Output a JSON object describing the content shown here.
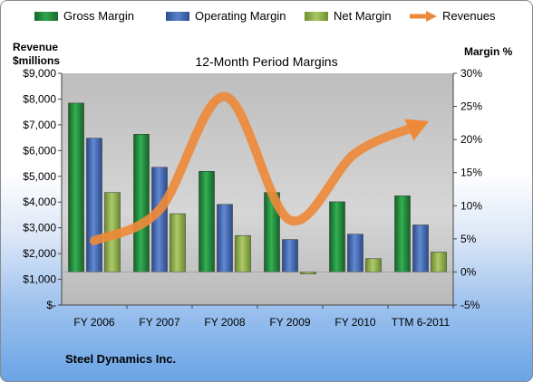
{
  "legend": {
    "gross": "Gross Margin",
    "operating": "Operating Margin",
    "net": "Net Margin",
    "revenues": "Revenues"
  },
  "left_axis_title_line1": "Revenue",
  "left_axis_title_line2": "$millions",
  "right_axis_title": "Margin %",
  "company": "Steel Dynamics Inc.",
  "colors": {
    "gross": "#1f8a3c",
    "operating": "#3d63ad",
    "net": "#8faf4a",
    "revenues": "#ed8a3a",
    "plot_bg": "#cfcfcf"
  },
  "chart_data": {
    "type": "bar",
    "title": "12-Month Period Margins",
    "categories": [
      "FY 2006",
      "FY 2007",
      "FY 2008",
      "FY 2009",
      "FY 2010",
      "TTM 6-2011"
    ],
    "left_axis": {
      "label": "Revenue $millions",
      "ylim": [
        0,
        9000
      ],
      "ticks": [
        "$-",
        "$1,000",
        "$2,000",
        "$3,000",
        "$4,000",
        "$5,000",
        "$6,000",
        "$7,000",
        "$8,000",
        "$9,000"
      ]
    },
    "right_axis": {
      "label": "Margin %",
      "ylim": [
        -5,
        30
      ],
      "ticks": [
        "-5%",
        "0%",
        "5%",
        "10%",
        "15%",
        "20%",
        "25%",
        "30%"
      ]
    },
    "series": [
      {
        "name": "Gross Margin",
        "axis": "right",
        "type": "bar",
        "values": [
          25.5,
          20.8,
          15.2,
          12.0,
          10.6,
          11.5
        ]
      },
      {
        "name": "Operating Margin",
        "axis": "right",
        "type": "bar",
        "values": [
          20.2,
          15.8,
          10.2,
          4.9,
          5.7,
          7.1
        ]
      },
      {
        "name": "Net Margin",
        "axis": "right",
        "type": "bar",
        "values": [
          12.0,
          8.8,
          5.5,
          -0.3,
          2.0,
          3.0
        ]
      },
      {
        "name": "Revenues",
        "axis": "left",
        "type": "line",
        "values": [
          2500,
          3700,
          8100,
          3300,
          5900,
          7000
        ]
      }
    ],
    "grid": false,
    "legend_position": "top"
  }
}
